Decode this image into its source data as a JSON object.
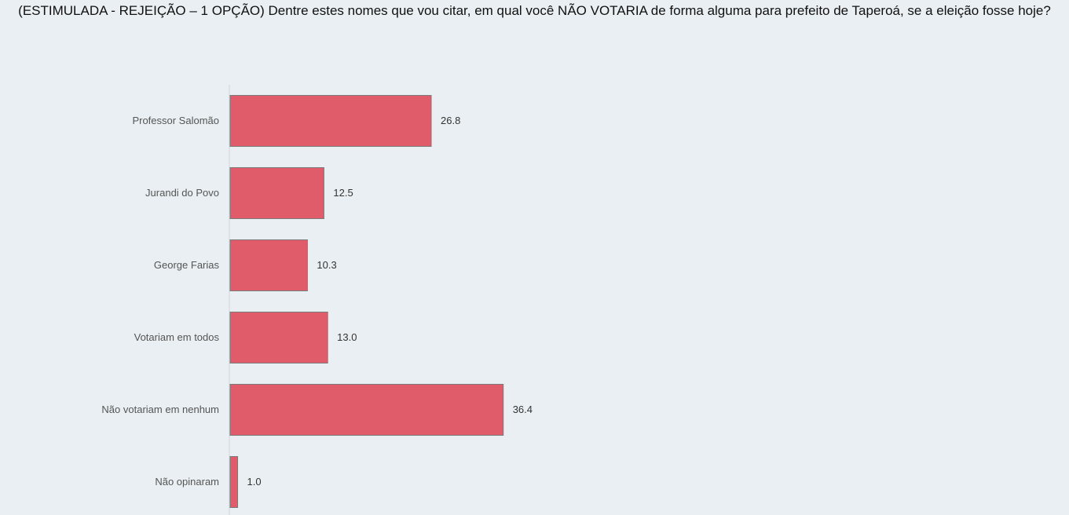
{
  "chart_data": {
    "type": "bar",
    "orientation": "horizontal",
    "title": "(ESTIMULADA - REJEIÇÃO – 1 OPÇÃO) Dentre estes nomes que vou citar, em qual você NÃO VOTARIA de forma alguma para prefeito de Taperoá, se a eleição fosse hoje?",
    "categories": [
      "Professor Salomão",
      "Jurandi do Povo",
      "George Farias",
      "Votariam em todos",
      "Não votariam em nenhum",
      "Não opinaram"
    ],
    "values": [
      26.8,
      12.5,
      10.3,
      13.0,
      36.4,
      1.0
    ],
    "value_labels": [
      "26.8",
      "12.5",
      "10.3",
      "13.0",
      "36.4",
      "1.0"
    ],
    "xlabel": "",
    "ylabel": "",
    "grid": false,
    "colors": {
      "bar": "#e05c6a",
      "bar_border": "#7a7a7a",
      "axis": "#d0d6da"
    }
  }
}
